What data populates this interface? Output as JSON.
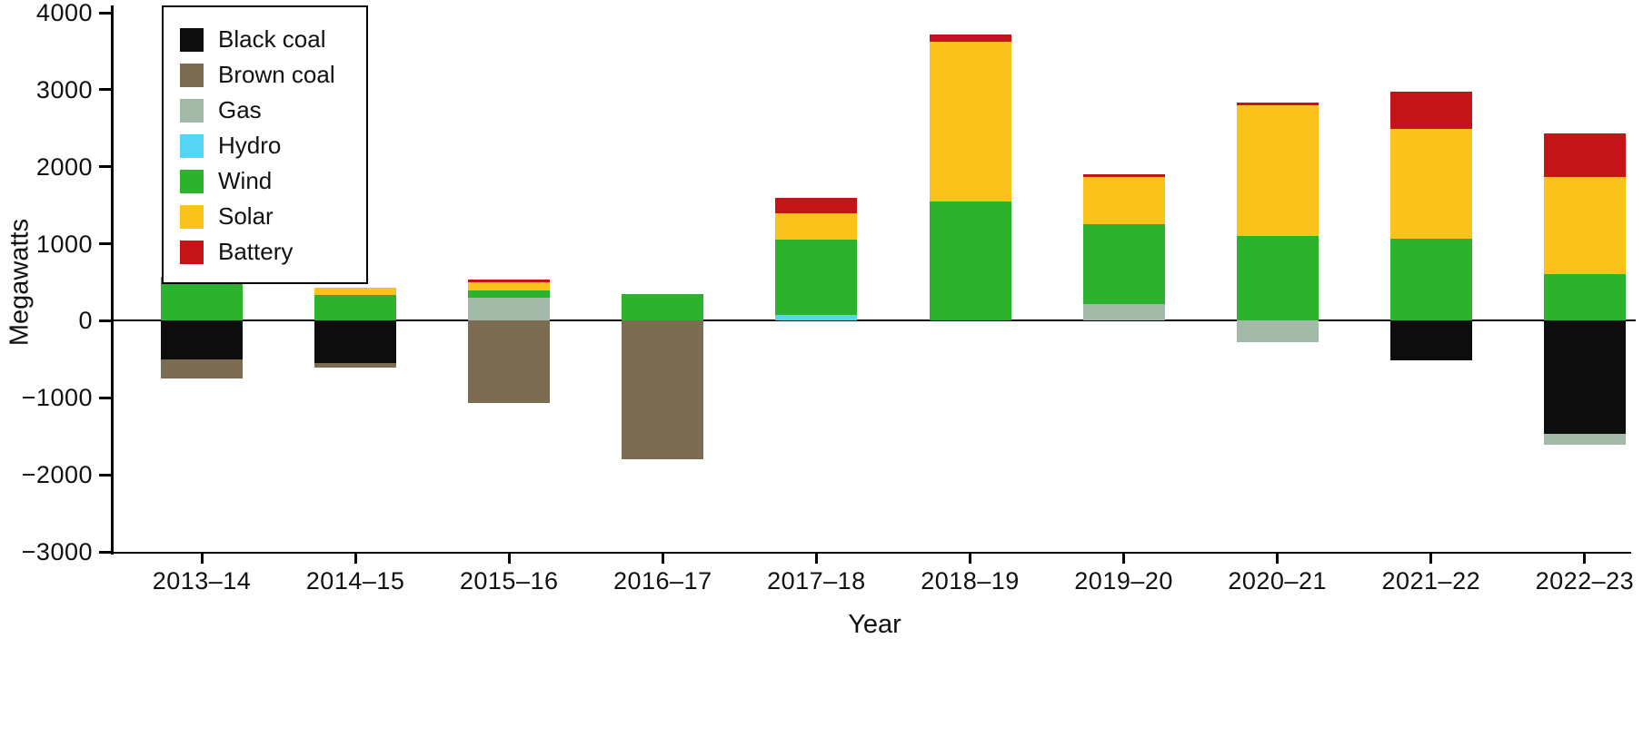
{
  "chart_data": {
    "type": "bar",
    "stacked": true,
    "title": "",
    "xlabel": "Year",
    "ylabel": "Megawatts",
    "ylim": [
      -3000,
      4000
    ],
    "ytick_values": [
      4000,
      3000,
      2000,
      1000,
      0,
      -1000,
      -2000,
      -3000
    ],
    "ytick_labels": [
      "4000",
      "3000",
      "2000",
      "1000",
      "0",
      "−1000",
      "−2000",
      "−3000"
    ],
    "categories": [
      "2013–14",
      "2014–15",
      "2015–16",
      "2016–17",
      "2017–18",
      "2018–19",
      "2019–20",
      "2020–21",
      "2021–22",
      "2022–23"
    ],
    "series": [
      {
        "name": "Black coal",
        "color": "#0d0d0d",
        "values": [
          -500,
          -550,
          0,
          0,
          0,
          0,
          0,
          0,
          -510,
          -1470
        ]
      },
      {
        "name": "Brown coal",
        "color": "#7b6c52",
        "values": [
          -250,
          -60,
          -1070,
          -1800,
          0,
          0,
          0,
          0,
          0,
          0
        ]
      },
      {
        "name": "Gas",
        "color": "#a4baa8",
        "values": [
          0,
          0,
          300,
          0,
          0,
          0,
          220,
          -280,
          0,
          -140
        ]
      },
      {
        "name": "Hydro",
        "color": "#55d4f5",
        "values": [
          0,
          0,
          0,
          0,
          70,
          0,
          0,
          0,
          0,
          0
        ]
      },
      {
        "name": "Wind",
        "color": "#2cb22c",
        "values": [
          570,
          330,
          90,
          350,
          980,
          1550,
          1030,
          1100,
          1070,
          610
        ]
      },
      {
        "name": "Solar",
        "color": "#fcc21c",
        "values": [
          0,
          100,
          110,
          0,
          350,
          2070,
          620,
          1700,
          1420,
          1260
        ]
      },
      {
        "name": "Battery",
        "color": "#c41418",
        "values": [
          0,
          0,
          30,
          0,
          200,
          100,
          30,
          30,
          490,
          560
        ]
      }
    ],
    "legend_position": "upper left",
    "grid": false,
    "zero_line": true,
    "axis_color": "#000000",
    "background_color": "#ffffff"
  }
}
